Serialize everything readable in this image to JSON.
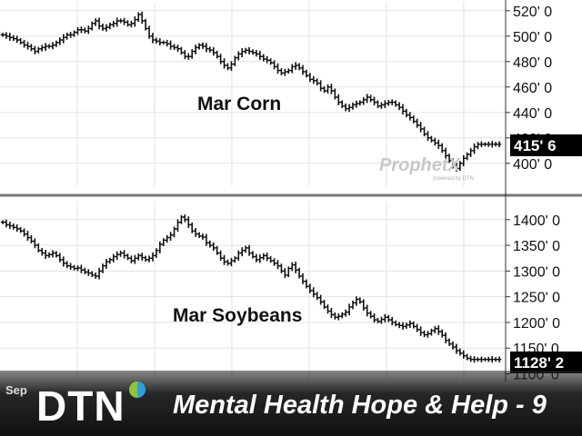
{
  "chart_data": [
    {
      "type": "ohlc",
      "title": "Mar Corn",
      "ylim": [
        382,
        527
      ],
      "y_ticks": [
        400,
        420,
        440,
        460,
        480,
        500,
        520
      ],
      "y_tick_labels": [
        "400' 0",
        "420' 0",
        "440' 0",
        "460' 0",
        "480' 0",
        "500' 0",
        "520' 0"
      ],
      "last_price_label": "415' 6",
      "grid": true,
      "series": [
        {
          "x": [
            1,
            2,
            3,
            4,
            5,
            6,
            7,
            8,
            9,
            10,
            11,
            12,
            13,
            14,
            15,
            16,
            17,
            18,
            19,
            20,
            21,
            22,
            23,
            24,
            25,
            26,
            27,
            28,
            29,
            30,
            31,
            32,
            33,
            34,
            35,
            36,
            37,
            38,
            39,
            40,
            41,
            42,
            43,
            44,
            45,
            46,
            47,
            48,
            49,
            50,
            51,
            52,
            53,
            54,
            55,
            56,
            57,
            58,
            59,
            60,
            61,
            62,
            63,
            64,
            65,
            66,
            67,
            68,
            69,
            70,
            71,
            72,
            73,
            74,
            75,
            76,
            77,
            78,
            79,
            80,
            81,
            82,
            83,
            84,
            85,
            86,
            87,
            88,
            89,
            90,
            91,
            92,
            93,
            94,
            95,
            96,
            97,
            98,
            99,
            100,
            101,
            102,
            103,
            104,
            105,
            106,
            107,
            108,
            109,
            110,
            111,
            112,
            113,
            114,
            115,
            116,
            117,
            118,
            119,
            120,
            121,
            122,
            123,
            124,
            125,
            126,
            127,
            128,
            129,
            130,
            131,
            132,
            133,
            134,
            135,
            136,
            137,
            138,
            139,
            140
          ],
          "close": [
            501,
            500,
            499,
            498,
            497,
            495,
            493,
            492,
            490,
            488,
            490,
            491,
            492,
            492,
            493,
            495,
            497,
            499,
            501,
            501,
            503,
            505,
            505,
            504,
            506,
            510,
            512,
            508,
            506,
            507,
            509,
            510,
            512,
            512,
            511,
            509,
            510,
            513,
            517,
            512,
            506,
            500,
            497,
            496,
            495,
            495,
            494,
            492,
            491,
            490,
            487,
            484,
            484,
            488,
            491,
            493,
            492,
            490,
            489,
            487,
            484,
            480,
            477,
            475,
            478,
            483,
            486,
            488,
            489,
            488,
            487,
            486,
            484,
            482,
            481,
            479,
            476,
            473,
            471,
            472,
            473,
            476,
            477,
            475,
            472,
            469,
            466,
            465,
            463,
            459,
            457,
            460,
            457,
            452,
            448,
            445,
            443,
            444,
            446,
            447,
            448,
            450,
            452,
            450,
            448,
            445,
            446,
            447,
            448,
            448,
            446,
            444,
            441,
            438,
            436,
            433,
            430,
            427,
            423,
            420,
            418,
            416,
            414,
            410,
            406,
            402,
            398,
            396,
            400,
            404,
            407,
            410,
            413,
            415,
            415,
            415,
            415,
            415,
            415,
            415
          ]
        }
      ]
    },
    {
      "type": "ohlc",
      "title": "Mar Soybeans",
      "ylim": [
        1085,
        1435
      ],
      "y_ticks": [
        1100,
        1150,
        1200,
        1250,
        1300,
        1350,
        1400
      ],
      "y_tick_labels": [
        "1100' 0",
        "1150' 0",
        "1200' 0",
        "1250' 0",
        "1300' 0",
        "1350' 0",
        "1400' 0"
      ],
      "last_price_label": "1128' 2",
      "grid": true,
      "series": [
        {
          "x": [
            1,
            2,
            3,
            4,
            5,
            6,
            7,
            8,
            9,
            10,
            11,
            12,
            13,
            14,
            15,
            16,
            17,
            18,
            19,
            20,
            21,
            22,
            23,
            24,
            25,
            26,
            27,
            28,
            29,
            30,
            31,
            32,
            33,
            34,
            35,
            36,
            37,
            38,
            39,
            40,
            41,
            42,
            43,
            44,
            45,
            46,
            47,
            48,
            49,
            50,
            51,
            52,
            53,
            54,
            55,
            56,
            57,
            58,
            59,
            60,
            61,
            62,
            63,
            64,
            65,
            66,
            67,
            68,
            69,
            70,
            71,
            72,
            73,
            74,
            75,
            76,
            77,
            78,
            79,
            80,
            81,
            82,
            83,
            84,
            85,
            86,
            87,
            88,
            89,
            90,
            91,
            92,
            93,
            94,
            95,
            96,
            97,
            98,
            99,
            100,
            101,
            102,
            103,
            104,
            105,
            106,
            107,
            108,
            109,
            110,
            111,
            112,
            113,
            114,
            115,
            116,
            117,
            118,
            119,
            120,
            121,
            122,
            123,
            124,
            125,
            126,
            127,
            128,
            129,
            130,
            131,
            132,
            133,
            134,
            135,
            136,
            137,
            138,
            139,
            140
          ],
          "close": [
            1395,
            1390,
            1388,
            1385,
            1382,
            1378,
            1372,
            1365,
            1358,
            1350,
            1340,
            1335,
            1330,
            1332,
            1335,
            1330,
            1322,
            1315,
            1310,
            1308,
            1305,
            1306,
            1302,
            1298,
            1296,
            1292,
            1290,
            1300,
            1310,
            1318,
            1322,
            1328,
            1332,
            1335,
            1330,
            1325,
            1320,
            1325,
            1330,
            1326,
            1322,
            1325,
            1330,
            1340,
            1352,
            1360,
            1365,
            1370,
            1382,
            1395,
            1405,
            1400,
            1390,
            1378,
            1372,
            1368,
            1366,
            1355,
            1350,
            1345,
            1335,
            1325,
            1318,
            1315,
            1320,
            1325,
            1335,
            1340,
            1345,
            1335,
            1328,
            1322,
            1326,
            1330,
            1325,
            1320,
            1315,
            1310,
            1300,
            1292,
            1305,
            1312,
            1302,
            1290,
            1280,
            1270,
            1262,
            1255,
            1248,
            1240,
            1230,
            1222,
            1215,
            1210,
            1212,
            1216,
            1220,
            1230,
            1238,
            1245,
            1240,
            1228,
            1218,
            1212,
            1205,
            1202,
            1206,
            1210,
            1205,
            1200,
            1196,
            1194,
            1192,
            1195,
            1198,
            1192,
            1186,
            1180,
            1176,
            1178,
            1184,
            1188,
            1182,
            1175,
            1165,
            1158,
            1152,
            1145,
            1140,
            1135,
            1130,
            1128,
            1128,
            1128,
            1128,
            1128,
            1128,
            1128,
            1128,
            1128
          ]
        }
      ]
    }
  ],
  "watermark": {
    "brand": "ProphetX",
    "tagline": "powered by DTN"
  },
  "banner": {
    "month_label": "Sep",
    "logo_text": "DTN",
    "title": "Mental Health Hope & Help - 9",
    "colors": {
      "logo_blue": "#2ca3d8",
      "logo_green": "#8cc63f"
    }
  },
  "colors": {
    "bars": "#111111",
    "grid": "#e2e2e2",
    "divider": "#777777",
    "badge": "#000000"
  }
}
